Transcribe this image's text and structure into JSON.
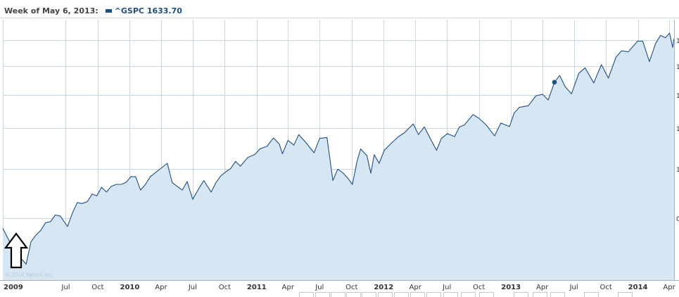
{
  "legend": {
    "week_label": "Week of May 6, 2013:",
    "series_label": "^GSPC 1633.70"
  },
  "watermark": "© 2014 Yahoo! Inc.",
  "colors": {
    "line": "#1f4e80",
    "fill": "#d6e6f2",
    "grid": "#c6d6e4",
    "axis_text": "#333333"
  },
  "chart_data": {
    "type": "area",
    "title": "",
    "xlabel": "",
    "ylabel": "",
    "grid": true,
    "legend_position": "top-left",
    "x_tick_labels": [
      {
        "label": "2009",
        "date": "2009-01-01",
        "bold": true
      },
      {
        "label": "Jul",
        "date": "2009-07-01",
        "bold": false
      },
      {
        "label": "Oct",
        "date": "2009-10-01",
        "bold": false
      },
      {
        "label": "2010",
        "date": "2010-01-01",
        "bold": true
      },
      {
        "label": "Apr",
        "date": "2010-04-01",
        "bold": false
      },
      {
        "label": "Jul",
        "date": "2010-07-01",
        "bold": false
      },
      {
        "label": "Oct",
        "date": "2010-10-01",
        "bold": false
      },
      {
        "label": "2011",
        "date": "2011-01-01",
        "bold": true
      },
      {
        "label": "Apr",
        "date": "2011-04-01",
        "bold": false
      },
      {
        "label": "Jul",
        "date": "2011-07-01",
        "bold": false
      },
      {
        "label": "Oct",
        "date": "2011-10-01",
        "bold": false
      },
      {
        "label": "2012",
        "date": "2012-01-01",
        "bold": true
      },
      {
        "label": "Apr",
        "date": "2012-04-01",
        "bold": false
      },
      {
        "label": "Jul",
        "date": "2012-07-01",
        "bold": false
      },
      {
        "label": "Oct",
        "date": "2012-10-01",
        "bold": false
      },
      {
        "label": "2013",
        "date": "2013-01-01",
        "bold": true
      },
      {
        "label": "Apr",
        "date": "2013-04-01",
        "bold": false
      },
      {
        "label": "Jul",
        "date": "2013-07-01",
        "bold": false
      },
      {
        "label": "Oct",
        "date": "2013-10-01",
        "bold": false
      },
      {
        "label": "2014",
        "date": "2014-01-01",
        "bold": true
      },
      {
        "label": "Apr",
        "date": "2014-04-01",
        "bold": false
      }
    ],
    "y_tick_labels": [
      "1",
      "1",
      "1",
      "1",
      "1",
      "0"
    ],
    "x_range": [
      "2009-01-01",
      "2014-04-15"
    ],
    "highlight": {
      "date": "2013-05-06",
      "value": 1633.7
    },
    "series": [
      {
        "name": "^GSPC",
        "points": [
          [
            "2009-01-01",
            870
          ],
          [
            "2009-02-01",
            760
          ],
          [
            "2009-03-09",
            683
          ],
          [
            "2009-03-23",
            800
          ],
          [
            "2009-04-06",
            835
          ],
          [
            "2009-04-20",
            860
          ],
          [
            "2009-05-04",
            900
          ],
          [
            "2009-05-18",
            905
          ],
          [
            "2009-06-01",
            940
          ],
          [
            "2009-06-15",
            935
          ],
          [
            "2009-07-06",
            880
          ],
          [
            "2009-07-20",
            950
          ],
          [
            "2009-08-03",
            1005
          ],
          [
            "2009-08-17",
            1000
          ],
          [
            "2009-09-01",
            1010
          ],
          [
            "2009-09-15",
            1050
          ],
          [
            "2009-09-28",
            1040
          ],
          [
            "2009-10-12",
            1085
          ],
          [
            "2009-10-26",
            1060
          ],
          [
            "2009-11-09",
            1090
          ],
          [
            "2009-11-23",
            1100
          ],
          [
            "2009-12-07",
            1100
          ],
          [
            "2009-12-21",
            1110
          ],
          [
            "2010-01-04",
            1140
          ],
          [
            "2010-01-18",
            1140
          ],
          [
            "2010-02-01",
            1070
          ],
          [
            "2010-02-15",
            1100
          ],
          [
            "2010-03-01",
            1140
          ],
          [
            "2010-03-15",
            1160
          ],
          [
            "2010-04-05",
            1190
          ],
          [
            "2010-04-19",
            1210
          ],
          [
            "2010-05-03",
            1110
          ],
          [
            "2010-05-17",
            1090
          ],
          [
            "2010-06-01",
            1070
          ],
          [
            "2010-06-15",
            1115
          ],
          [
            "2010-07-01",
            1022
          ],
          [
            "2010-07-19",
            1080
          ],
          [
            "2010-08-02",
            1120
          ],
          [
            "2010-08-23",
            1060
          ],
          [
            "2010-09-06",
            1110
          ],
          [
            "2010-09-20",
            1145
          ],
          [
            "2010-10-04",
            1165
          ],
          [
            "2010-10-18",
            1183
          ],
          [
            "2010-11-01",
            1220
          ],
          [
            "2010-11-15",
            1195
          ],
          [
            "2010-12-06",
            1240
          ],
          [
            "2010-12-27",
            1257
          ],
          [
            "2011-01-10",
            1285
          ],
          [
            "2011-01-31",
            1300
          ],
          [
            "2011-02-18",
            1343
          ],
          [
            "2011-03-07",
            1310
          ],
          [
            "2011-03-16",
            1260
          ],
          [
            "2011-04-01",
            1330
          ],
          [
            "2011-04-18",
            1305
          ],
          [
            "2011-05-02",
            1360
          ],
          [
            "2011-05-23",
            1317
          ],
          [
            "2011-06-15",
            1265
          ],
          [
            "2011-07-01",
            1340
          ],
          [
            "2011-07-22",
            1345
          ],
          [
            "2011-08-08",
            1120
          ],
          [
            "2011-08-22",
            1180
          ],
          [
            "2011-09-06",
            1160
          ],
          [
            "2011-09-21",
            1130
          ],
          [
            "2011-10-03",
            1099
          ],
          [
            "2011-10-17",
            1225
          ],
          [
            "2011-10-27",
            1285
          ],
          [
            "2011-11-14",
            1250
          ],
          [
            "2011-11-25",
            1158
          ],
          [
            "2011-12-05",
            1255
          ],
          [
            "2011-12-19",
            1210
          ],
          [
            "2012-01-03",
            1278
          ],
          [
            "2012-01-23",
            1315
          ],
          [
            "2012-02-13",
            1350
          ],
          [
            "2012-03-01",
            1370
          ],
          [
            "2012-03-26",
            1416
          ],
          [
            "2012-04-10",
            1360
          ],
          [
            "2012-04-27",
            1400
          ],
          [
            "2012-05-14",
            1340
          ],
          [
            "2012-06-01",
            1278
          ],
          [
            "2012-06-15",
            1340
          ],
          [
            "2012-07-02",
            1365
          ],
          [
            "2012-07-23",
            1350
          ],
          [
            "2012-08-06",
            1400
          ],
          [
            "2012-08-20",
            1410
          ],
          [
            "2012-09-14",
            1465
          ],
          [
            "2012-10-01",
            1445
          ],
          [
            "2012-10-22",
            1410
          ],
          [
            "2012-11-15",
            1353
          ],
          [
            "2012-12-03",
            1420
          ],
          [
            "2012-12-28",
            1402
          ],
          [
            "2013-01-10",
            1472
          ],
          [
            "2013-01-25",
            1502
          ],
          [
            "2013-02-20",
            1511
          ],
          [
            "2013-03-14",
            1563
          ],
          [
            "2013-04-02",
            1570
          ],
          [
            "2013-04-18",
            1541
          ],
          [
            "2013-05-06",
            1633.7
          ],
          [
            "2013-05-21",
            1669
          ],
          [
            "2013-06-06",
            1610
          ],
          [
            "2013-06-24",
            1573
          ],
          [
            "2013-07-15",
            1680
          ],
          [
            "2013-08-02",
            1709
          ],
          [
            "2013-08-27",
            1630
          ],
          [
            "2013-09-18",
            1725
          ],
          [
            "2013-10-08",
            1655
          ],
          [
            "2013-10-30",
            1765
          ],
          [
            "2013-11-15",
            1798
          ],
          [
            "2013-12-04",
            1792
          ],
          [
            "2013-12-31",
            1848
          ],
          [
            "2014-01-15",
            1848
          ],
          [
            "2014-02-03",
            1741
          ],
          [
            "2014-02-21",
            1836
          ],
          [
            "2014-03-07",
            1878
          ],
          [
            "2014-03-21",
            1866
          ],
          [
            "2014-04-02",
            1890
          ],
          [
            "2014-04-11",
            1815
          ],
          [
            "2014-04-15",
            1862
          ]
        ]
      }
    ]
  }
}
